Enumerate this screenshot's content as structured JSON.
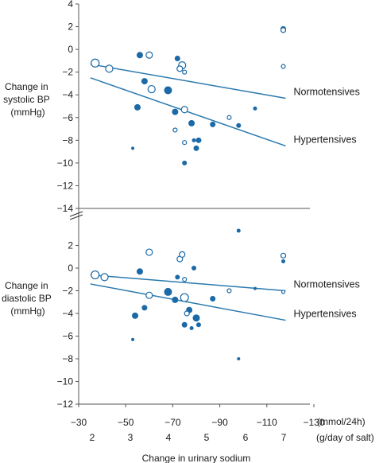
{
  "colors": {
    "filled": "#1b69a6",
    "line": "#2a7aae",
    "axis": "#555555"
  },
  "chart_data": [
    {
      "type": "scatter",
      "panel": "systolic",
      "ylabel_lines": [
        "Change in",
        "systolic BP",
        "(mmHg)"
      ],
      "ylim": [
        -14,
        4
      ],
      "yticks": [
        4,
        2,
        0,
        -2,
        -4,
        -6,
        -8,
        -10,
        -12,
        -14
      ],
      "xlim": [
        -30,
        -130
      ],
      "points": [
        {
          "x": -37,
          "y": -1.2,
          "size": 5,
          "filled": false
        },
        {
          "x": -43,
          "y": -1.7,
          "size": 4.5,
          "filled": false
        },
        {
          "x": -60,
          "y": -0.5,
          "size": 4,
          "filled": false
        },
        {
          "x": -56,
          "y": -0.5,
          "size": 4,
          "filled": true
        },
        {
          "x": -58,
          "y": -2.8,
          "size": 4,
          "filled": true
        },
        {
          "x": -61,
          "y": -3.5,
          "size": 4.5,
          "filled": false
        },
        {
          "x": -55,
          "y": -5.1,
          "size": 4,
          "filled": true
        },
        {
          "x": -68,
          "y": -3.6,
          "size": 5,
          "filled": true
        },
        {
          "x": -72,
          "y": -0.8,
          "size": 3.5,
          "filled": true
        },
        {
          "x": -74,
          "y": -1.4,
          "size": 4.5,
          "filled": false
        },
        {
          "x": -73,
          "y": -1.7,
          "size": 3.5,
          "filled": false
        },
        {
          "x": -75,
          "y": -2.0,
          "size": 2.5,
          "filled": false
        },
        {
          "x": -71,
          "y": -5.5,
          "size": 4,
          "filled": true
        },
        {
          "x": -75,
          "y": -5.3,
          "size": 4,
          "filled": false
        },
        {
          "x": -78,
          "y": -6.5,
          "size": 4,
          "filled": true
        },
        {
          "x": -71,
          "y": -7.1,
          "size": 2.5,
          "filled": false
        },
        {
          "x": -75,
          "y": -8.2,
          "size": 2.5,
          "filled": false
        },
        {
          "x": -79,
          "y": -8.0,
          "size": 2.5,
          "filled": true
        },
        {
          "x": -81,
          "y": -8.0,
          "size": 3.5,
          "filled": true
        },
        {
          "x": -80,
          "y": -8.7,
          "size": 3.5,
          "filled": true
        },
        {
          "x": -75,
          "y": -10.0,
          "size": 3,
          "filled": true
        },
        {
          "x": -53,
          "y": -8.7,
          "size": 2,
          "filled": true
        },
        {
          "x": -87,
          "y": -6.6,
          "size": 3.5,
          "filled": true
        },
        {
          "x": -94,
          "y": -6.0,
          "size": 2.5,
          "filled": false
        },
        {
          "x": -98,
          "y": -6.7,
          "size": 3,
          "filled": true
        },
        {
          "x": -105,
          "y": -5.2,
          "size": 2.5,
          "filled": true
        },
        {
          "x": -117,
          "y": 1.8,
          "size": 3.5,
          "filled": true
        },
        {
          "x": -117,
          "y": 1.7,
          "size": 3,
          "filled": false
        },
        {
          "x": -117,
          "y": -1.5,
          "size": 2.5,
          "filled": false
        }
      ],
      "lines": [
        {
          "name": "Normotensives",
          "x": [
            -35,
            -118
          ],
          "y": [
            -1.3,
            -4.3
          ]
        },
        {
          "name": "Hypertensives",
          "x": [
            -35,
            -118
          ],
          "y": [
            -2.5,
            -8.5
          ]
        }
      ]
    },
    {
      "type": "scatter",
      "panel": "diastolic",
      "ylabel_lines": [
        "Change in",
        "diastolic BP",
        "(mmHg)"
      ],
      "ylim": [
        -12,
        4
      ],
      "yticks": [
        2,
        0,
        -2,
        -4,
        -6,
        -8,
        -10,
        -12
      ],
      "xlim": [
        -30,
        -130
      ],
      "xticks": [
        -30,
        -50,
        -70,
        -90,
        -110,
        -130
      ],
      "xunit": "(mmol/24h)",
      "x2ticks": [
        "2",
        "3",
        "4",
        "5",
        "6",
        "7"
      ],
      "x2unit": "(g/day of salt)",
      "xlabel": "Change in urinary sodium",
      "points": [
        {
          "x": -37,
          "y": -0.6,
          "size": 5,
          "filled": false
        },
        {
          "x": -41,
          "y": -0.8,
          "size": 4.5,
          "filled": false
        },
        {
          "x": -60,
          "y": 1.4,
          "size": 4,
          "filled": false
        },
        {
          "x": -56,
          "y": -0.3,
          "size": 4,
          "filled": true
        },
        {
          "x": -60,
          "y": -2.4,
          "size": 4,
          "filled": false
        },
        {
          "x": -54,
          "y": -4.2,
          "size": 4,
          "filled": true
        },
        {
          "x": -58,
          "y": -3.5,
          "size": 3.5,
          "filled": true
        },
        {
          "x": -68,
          "y": -2.1,
          "size": 5,
          "filled": true
        },
        {
          "x": -71,
          "y": -2.8,
          "size": 4,
          "filled": true
        },
        {
          "x": -73,
          "y": 0.8,
          "size": 3.5,
          "filled": false
        },
        {
          "x": -74,
          "y": 1.2,
          "size": 3.5,
          "filled": false
        },
        {
          "x": -72,
          "y": -0.8,
          "size": 3,
          "filled": true
        },
        {
          "x": -75,
          "y": -1.0,
          "size": 2.5,
          "filled": false
        },
        {
          "x": -79,
          "y": 0.0,
          "size": 3,
          "filled": true
        },
        {
          "x": -75,
          "y": -2.6,
          "size": 5,
          "filled": false
        },
        {
          "x": -77,
          "y": -3.7,
          "size": 4,
          "filled": true
        },
        {
          "x": -76,
          "y": -4.0,
          "size": 3,
          "filled": false
        },
        {
          "x": -80,
          "y": -4.4,
          "size": 4.5,
          "filled": true
        },
        {
          "x": -75,
          "y": -5.0,
          "size": 3.5,
          "filled": true
        },
        {
          "x": -81,
          "y": -5.0,
          "size": 3,
          "filled": true
        },
        {
          "x": -78,
          "y": -5.3,
          "size": 2.5,
          "filled": true
        },
        {
          "x": -53,
          "y": -6.3,
          "size": 2,
          "filled": true
        },
        {
          "x": -87,
          "y": -2.7,
          "size": 3.5,
          "filled": true
        },
        {
          "x": -94,
          "y": -2.0,
          "size": 2.5,
          "filled": false
        },
        {
          "x": -98,
          "y": 3.3,
          "size": 2.5,
          "filled": true
        },
        {
          "x": -98,
          "y": -8.0,
          "size": 2,
          "filled": true
        },
        {
          "x": -105,
          "y": -1.8,
          "size": 2,
          "filled": true
        },
        {
          "x": -117,
          "y": 1.1,
          "size": 3,
          "filled": false
        },
        {
          "x": -117,
          "y": 0.6,
          "size": 2.5,
          "filled": true
        },
        {
          "x": -117,
          "y": -2.1,
          "size": 2,
          "filled": false
        }
      ],
      "lines": [
        {
          "name": "Normotensives",
          "x": [
            -35,
            -118
          ],
          "y": [
            -0.6,
            -2.0
          ]
        },
        {
          "name": "Hypertensives",
          "x": [
            -35,
            -118
          ],
          "y": [
            -1.4,
            -4.6
          ]
        }
      ]
    }
  ]
}
